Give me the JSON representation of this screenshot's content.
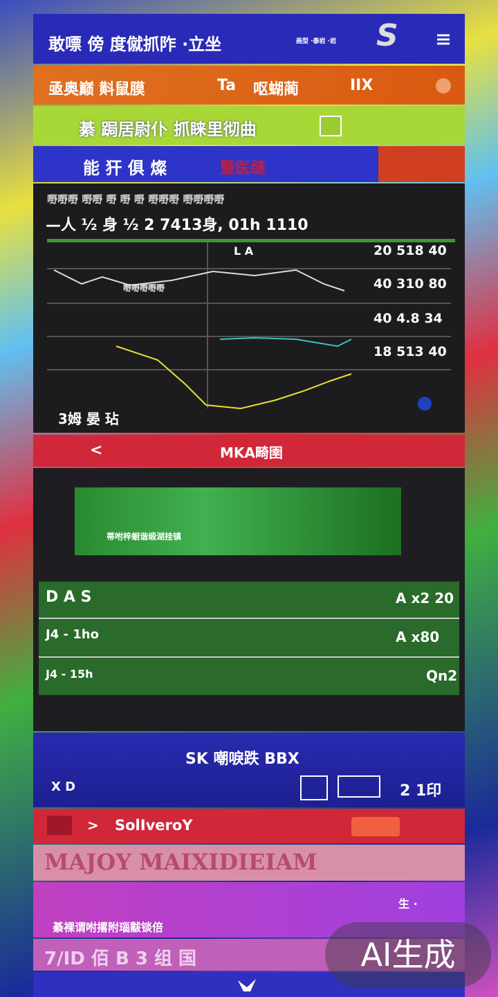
{
  "header": {
    "title": "敢嘌 傍 度僦抓阼 ·立坐",
    "subtitle": "画型 ·泰岩 ·岩",
    "logo": "S"
  },
  "tabs": [
    {
      "left": "亟奥巅 斢鼠膜",
      "mid": "Ta",
      "right": "呕蝴蔺",
      "end": "IIX"
    },
    {
      "left": "綦 跼居尉仆 抓睐里彻曲"
    },
    {
      "left": "能 犴 俱 燦",
      "right": "暨医缝"
    }
  ],
  "chart_panel": {
    "caption": "嘢嘢嘢 嘢嘢 嘢 嘢 嘢 嘢嘢嘢 嘢嘢嘢嘢",
    "headline": "—人 ½ 身 ½ 2 7413身, 01h 1110",
    "top_label": "L A",
    "right_labels": [
      "20 518 40",
      "40 310 80",
      "40 4.8 34",
      "18 513 40"
    ],
    "mid_label": "嘢嘢嘢嘢嘢",
    "footer": "3姆 晏 玷"
  },
  "nav_bar": {
    "back": "<",
    "title": "MKA畸圉"
  },
  "green_panel": {
    "text": "蒂咐梓蛔谐缎湖挂镇"
  },
  "rows": [
    {
      "left": "D A S",
      "right": "A x2 20"
    },
    {
      "left": "J4 -  1ho",
      "right": "A x80"
    },
    {
      "left": "J4 - 15h",
      "right": "Qn2"
    }
  ],
  "blue_panel": {
    "title": "SK 嘲唳跌 BBX",
    "left": "X D",
    "right": "2 1印"
  },
  "red_bar": {
    "arrow": ">",
    "title": "SolIveroY"
  },
  "banner": "MAJOY MAIXIDIEIAM",
  "purple_panel": {
    "text": "綦裸谓咐撂附瑙黻锬倍",
    "right": "生 ·"
  },
  "footer_text": "7/ID 佰 B 3 组 国",
  "watermark": "AI生成"
}
